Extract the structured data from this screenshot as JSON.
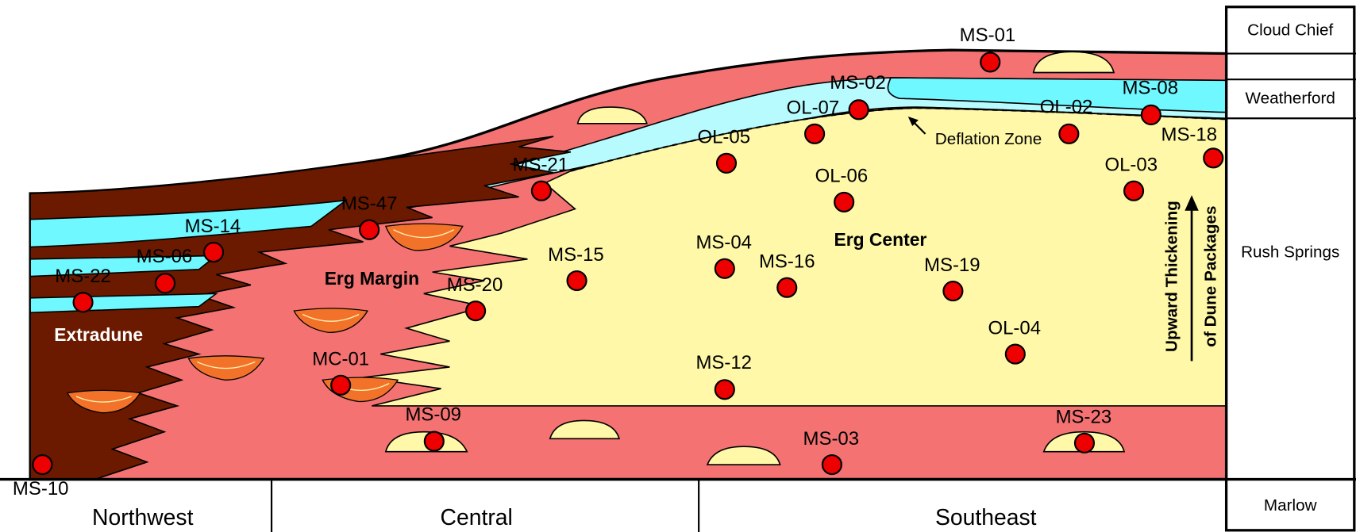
{
  "strata": [
    "Cloud Chief",
    "Weatherford",
    "Rush Springs",
    "Marlow"
  ],
  "regions": [
    "Northwest",
    "Central",
    "Southeast"
  ],
  "zones": {
    "extradune": "Extradune",
    "erg_margin": "Erg Margin",
    "erg_center": "Erg Center"
  },
  "annotations": {
    "deflation_zone": "Deflation Zone",
    "upward_thickening": [
      "Upward Thickening",
      "of Dune Packages"
    ]
  },
  "samples": [
    "MS-01",
    "MS-02",
    "OL-07",
    "MS-08",
    "OL-02",
    "MS-18",
    "OL-05",
    "MS-21",
    "OL-06",
    "OL-03",
    "MS-47",
    "MS-14",
    "MS-06",
    "MS-22",
    "MS-04",
    "MS-15",
    "MS-16",
    "MS-19",
    "MS-20",
    "OL-04",
    "MC-01",
    "MS-12",
    "MS-09",
    "MS-23",
    "MS-03",
    "MS-10"
  ]
}
